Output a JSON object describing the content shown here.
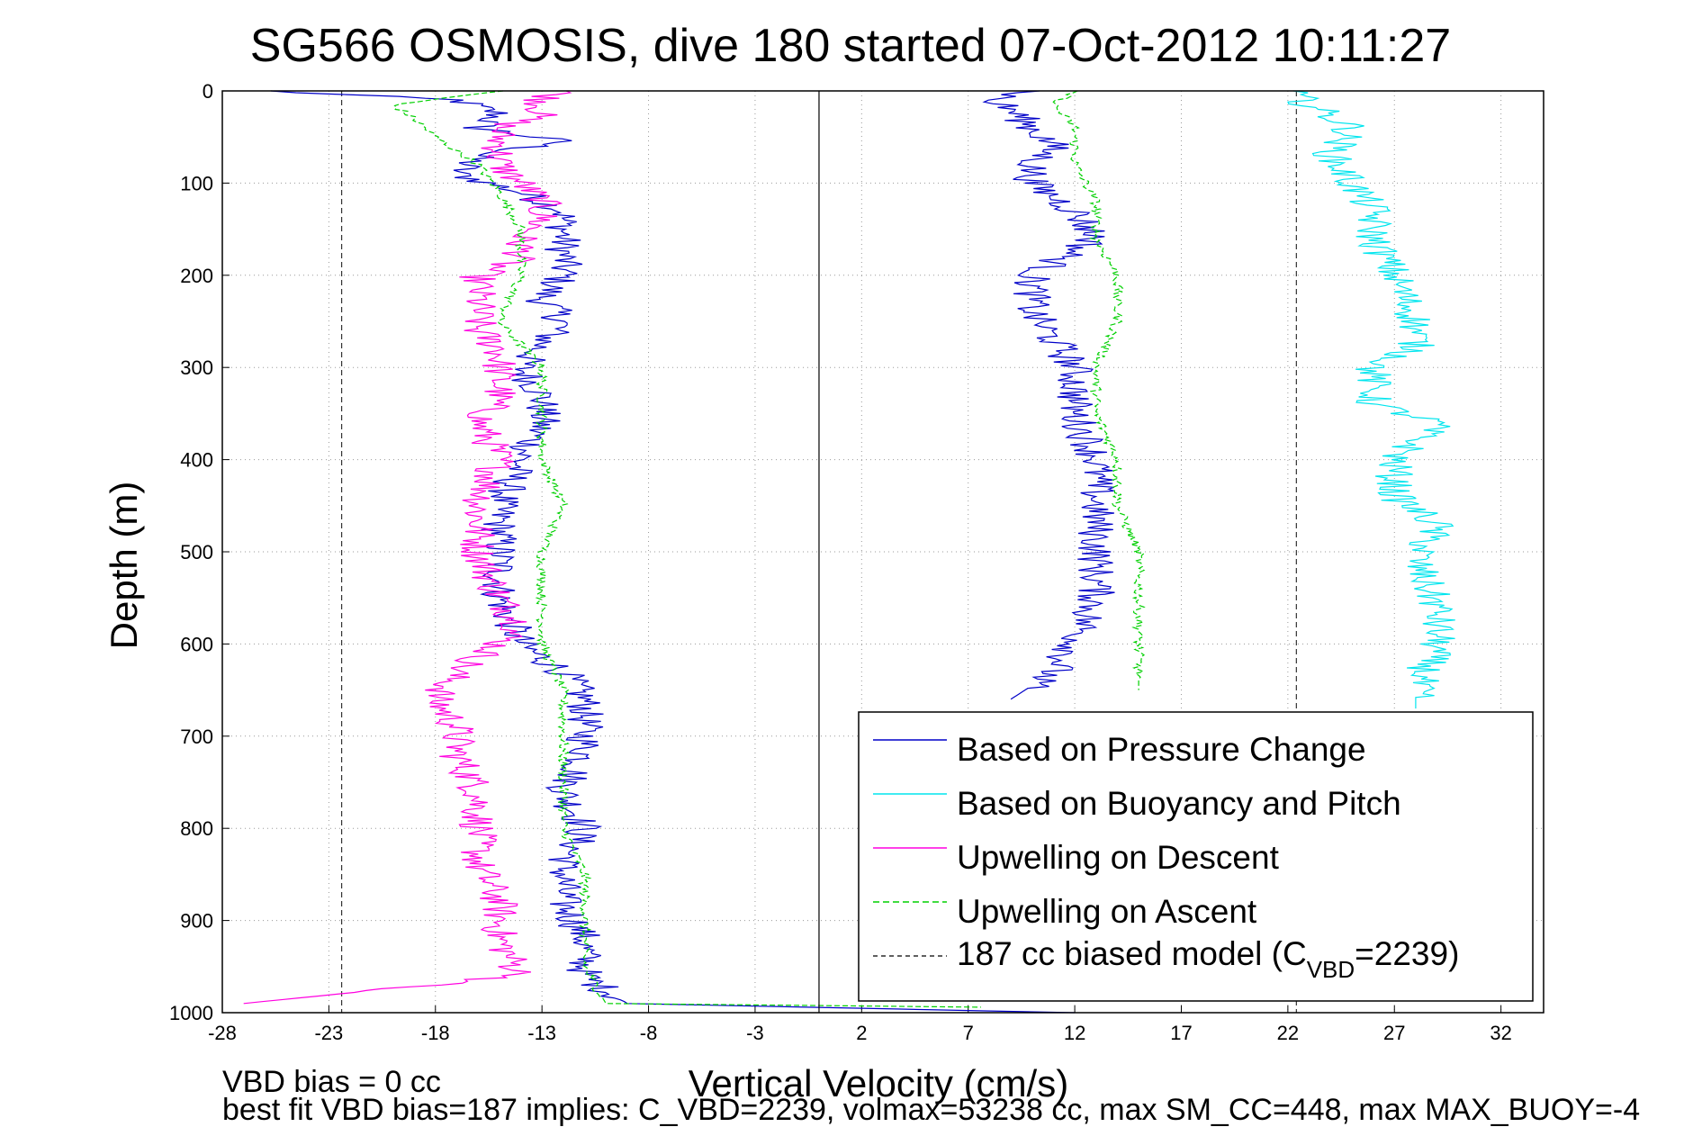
{
  "chart_data": {
    "type": "line",
    "title": "SG566 OSMOSIS, dive 180 started 07-Oct-2012 10:11:27",
    "xlabel": "Vertical Velocity (cm/s)",
    "ylabel": "Depth (m)",
    "xlim": [
      -28,
      34
    ],
    "ylim": [
      1000,
      0
    ],
    "xticks": [
      -28,
      -23,
      -18,
      -13,
      -8,
      -3,
      2,
      7,
      12,
      17,
      22,
      27,
      32
    ],
    "yticks": [
      0,
      100,
      200,
      300,
      400,
      500,
      600,
      700,
      800,
      900,
      1000
    ],
    "grid": true,
    "legend_position": "bottom-right",
    "colors": {
      "pressure": "#0000c8",
      "buoyancy": "#00e5ee",
      "descent": "#ff00e0",
      "ascent": "#00d000",
      "model": "#000000"
    },
    "legend": {
      "pressure": "Based on Pressure Change",
      "buoyancy": "Based on Buoyancy and Pitch",
      "descent": "Upwelling on Descent",
      "ascent": "Upwelling on Ascent",
      "model_prefix": "187 cc biased model (C",
      "model_sub": "VBD",
      "model_suffix": "=2239)"
    },
    "footer": {
      "line1": "VBD bias = 0 cc",
      "line2": "best fit VBD bias=187 implies: C_VBD=2239, volmax=53238 cc, max SM_CC=448, max MAX_BUOY=-4"
    },
    "series": [
      {
        "key": "pressure",
        "depth": [
          0,
          10,
          25,
          40,
          55,
          70,
          90,
          110,
          130,
          150,
          175,
          200,
          225,
          250,
          275,
          300,
          330,
          360,
          400,
          450,
          500,
          550,
          600,
          630,
          660,
          690,
          720,
          760,
          800,
          840,
          880,
          920,
          960,
          990,
          1000
        ],
        "values": [
          -26,
          -17,
          -15,
          -16,
          -12,
          -16,
          -17,
          -14,
          -12,
          -12,
          -12,
          -12,
          -13,
          -12,
          -13,
          -14,
          -13,
          -13,
          -14,
          -15,
          -15,
          -15,
          -14,
          -12,
          -11,
          -11,
          -11,
          -12,
          -11,
          -12,
          -12,
          -11,
          -11,
          -9,
          12
        ]
      },
      {
        "key": "descent",
        "depth": [
          0,
          10,
          25,
          40,
          60,
          80,
          100,
          120,
          140,
          160,
          180,
          200,
          220,
          240,
          260,
          280,
          300,
          330,
          360,
          400,
          450,
          500,
          550,
          580,
          600,
          630,
          660,
          690,
          720,
          760,
          800,
          840,
          880,
          920,
          960,
          990
        ],
        "values": [
          -12,
          -13,
          -13,
          -15,
          -15,
          -15,
          -14,
          -13,
          -13,
          -14,
          -14,
          -16,
          -16,
          -16,
          -16,
          -15,
          -15,
          -15,
          -16,
          -15,
          -16,
          -16,
          -15,
          -14,
          -15,
          -17,
          -18,
          -17,
          -17,
          -16,
          -16,
          -16,
          -15,
          -15,
          -14,
          -27
        ]
      },
      {
        "key": "ascent",
        "depth": [
          0,
          15,
          30,
          50,
          80,
          110,
          150,
          200,
          250,
          300,
          350,
          400,
          450,
          500,
          550,
          600,
          650,
          700,
          750,
          800,
          850,
          900,
          950,
          990,
          995
        ],
        "values": [
          -15,
          -20,
          -19,
          -18,
          -16,
          -15,
          -14,
          -14,
          -15,
          -13,
          -13,
          -13,
          -12,
          -13,
          -13,
          -13,
          -12,
          -12,
          -12,
          -12,
          -11,
          -11,
          -11,
          -10,
          12
        ]
      },
      {
        "key": "pressure_ascent",
        "depth": [
          0,
          10,
          20,
          40,
          60,
          80,
          100,
          130,
          160,
          200,
          240,
          270,
          300,
          350,
          400,
          450,
          500,
          550,
          600,
          630,
          660
        ],
        "values": [
          10,
          8,
          9,
          10,
          11,
          10,
          10,
          12,
          13,
          10,
          10,
          11,
          12,
          12,
          13,
          13,
          13,
          13,
          12,
          11,
          9
        ]
      },
      {
        "key": "ascent_right",
        "depth": [
          0,
          15,
          40,
          80,
          120,
          160,
          200,
          250,
          300,
          350,
          400,
          450,
          500,
          550,
          600,
          650
        ],
        "values": [
          12,
          11,
          12,
          12,
          13,
          13,
          14,
          14,
          13,
          13,
          14,
          14,
          15,
          15,
          15,
          15
        ]
      },
      {
        "key": "buoyancy",
        "depth": [
          0,
          15,
          40,
          70,
          100,
          130,
          160,
          200,
          250,
          280,
          300,
          340,
          360,
          400,
          440,
          470,
          510,
          560,
          600,
          650,
          670
        ],
        "values": [
          22,
          23,
          25,
          24,
          25,
          26,
          26,
          27,
          28,
          28,
          26,
          26,
          29,
          27,
          27,
          29,
          28,
          29,
          29,
          28,
          28
        ]
      }
    ],
    "model_lines": [
      -22.4,
      22.4
    ]
  }
}
